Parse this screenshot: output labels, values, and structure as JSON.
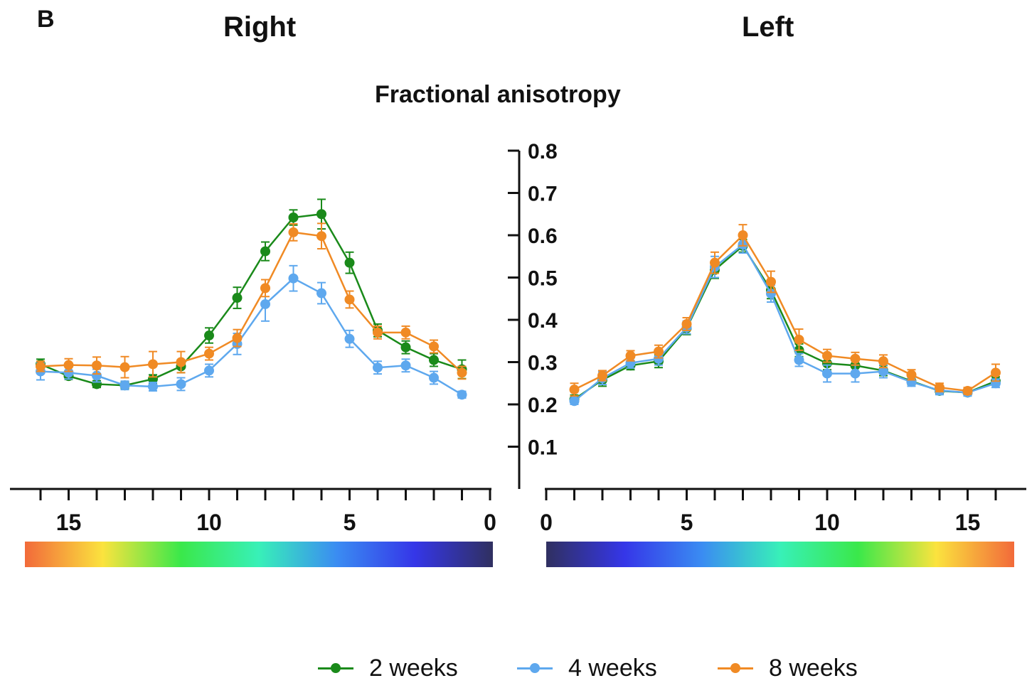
{
  "panel_letter": "B",
  "side_titles": {
    "right": "Right",
    "left": "Left"
  },
  "chart_data": {
    "type": "line",
    "title": "Fractional anisotropy",
    "ylim": [
      0,
      0.8
    ],
    "y_ticks": [
      "0.1",
      "0.2",
      "0.3",
      "0.4",
      "0.5",
      "0.6",
      "0.7",
      "0.8"
    ],
    "x_tick_labels": [
      "0",
      "5",
      "10",
      "15"
    ],
    "legend_position": "bottom-center",
    "panels": [
      {
        "name": "Right",
        "x_direction": "reversed",
        "x": [
          16,
          15,
          14,
          13,
          12,
          11,
          10,
          9,
          8,
          7,
          6,
          5,
          4,
          3,
          2,
          1
        ],
        "series": [
          {
            "name": "2 weeks",
            "color": "#1a8a1a",
            "values": [
              0.295,
              0.267,
              0.248,
              0.245,
              0.26,
              0.29,
              0.363,
              0.452,
              0.562,
              0.642,
              0.65,
              0.535,
              0.375,
              0.335,
              0.305,
              0.283
            ],
            "errors": [
              0.012,
              0.008,
              0.008,
              0.008,
              0.01,
              0.015,
              0.018,
              0.025,
              0.022,
              0.018,
              0.035,
              0.025,
              0.015,
              0.015,
              0.015,
              0.022
            ]
          },
          {
            "name": "4 weeks",
            "color": "#5ea8ee",
            "values": [
              0.278,
              0.275,
              0.268,
              0.245,
              0.242,
              0.248,
              0.28,
              0.343,
              0.437,
              0.498,
              0.463,
              0.355,
              0.287,
              0.292,
              0.263,
              0.223
            ],
            "errors": [
              0.02,
              0.015,
              0.015,
              0.01,
              0.01,
              0.015,
              0.015,
              0.025,
              0.04,
              0.03,
              0.025,
              0.02,
              0.015,
              0.015,
              0.015,
              0.008
            ]
          },
          {
            "name": "8 weeks",
            "color": "#f08a24",
            "values": [
              0.29,
              0.293,
              0.292,
              0.288,
              0.295,
              0.3,
              0.32,
              0.357,
              0.475,
              0.607,
              0.598,
              0.448,
              0.37,
              0.37,
              0.337,
              0.275
            ],
            "errors": [
              0.012,
              0.015,
              0.02,
              0.025,
              0.03,
              0.025,
              0.015,
              0.02,
              0.02,
              0.02,
              0.03,
              0.02,
              0.015,
              0.015,
              0.015,
              0.015
            ]
          }
        ]
      },
      {
        "name": "Left",
        "x_direction": "normal",
        "x": [
          1,
          2,
          3,
          4,
          5,
          6,
          7,
          8,
          9,
          10,
          11,
          12,
          13,
          14,
          15,
          16
        ],
        "series": [
          {
            "name": "2 weeks",
            "color": "#1a8a1a",
            "values": [
              0.212,
              0.258,
              0.292,
              0.302,
              0.38,
              0.518,
              0.575,
              0.47,
              0.328,
              0.297,
              0.292,
              0.28,
              0.255,
              0.232,
              0.228,
              0.255
            ],
            "errors": [
              0.01,
              0.015,
              0.01,
              0.015,
              0.015,
              0.02,
              0.015,
              0.02,
              0.015,
              0.015,
              0.015,
              0.012,
              0.008,
              0.008,
              0.008,
              0.01
            ]
          },
          {
            "name": "4 weeks",
            "color": "#5ea8ee",
            "values": [
              0.208,
              0.262,
              0.298,
              0.308,
              0.382,
              0.525,
              0.578,
              0.462,
              0.305,
              0.273,
              0.273,
              0.278,
              0.253,
              0.233,
              0.228,
              0.25
            ],
            "errors": [
              0.008,
              0.015,
              0.012,
              0.015,
              0.015,
              0.025,
              0.02,
              0.02,
              0.015,
              0.02,
              0.02,
              0.015,
              0.01,
              0.01,
              0.008,
              0.01
            ]
          },
          {
            "name": "8 weeks",
            "color": "#f08a24",
            "values": [
              0.235,
              0.268,
              0.315,
              0.325,
              0.39,
              0.535,
              0.6,
              0.49,
              0.353,
              0.315,
              0.308,
              0.302,
              0.27,
              0.24,
              0.232,
              0.275
            ],
            "errors": [
              0.015,
              0.012,
              0.012,
              0.015,
              0.015,
              0.025,
              0.025,
              0.025,
              0.025,
              0.015,
              0.015,
              0.015,
              0.012,
              0.01,
              0.008,
              0.02
            ]
          }
        ]
      }
    ],
    "colorbars": [
      {
        "panel": "Right",
        "stops": [
          "#f26a3a",
          "#fbe33e",
          "#3ae84a",
          "#38f0b8",
          "#3a8cf2",
          "#3536e8",
          "#303060"
        ]
      },
      {
        "panel": "Left",
        "stops": [
          "#303060",
          "#3536e8",
          "#3a8cf2",
          "#38f0b8",
          "#3ae84a",
          "#fbe33e",
          "#f26a3a"
        ]
      }
    ]
  }
}
